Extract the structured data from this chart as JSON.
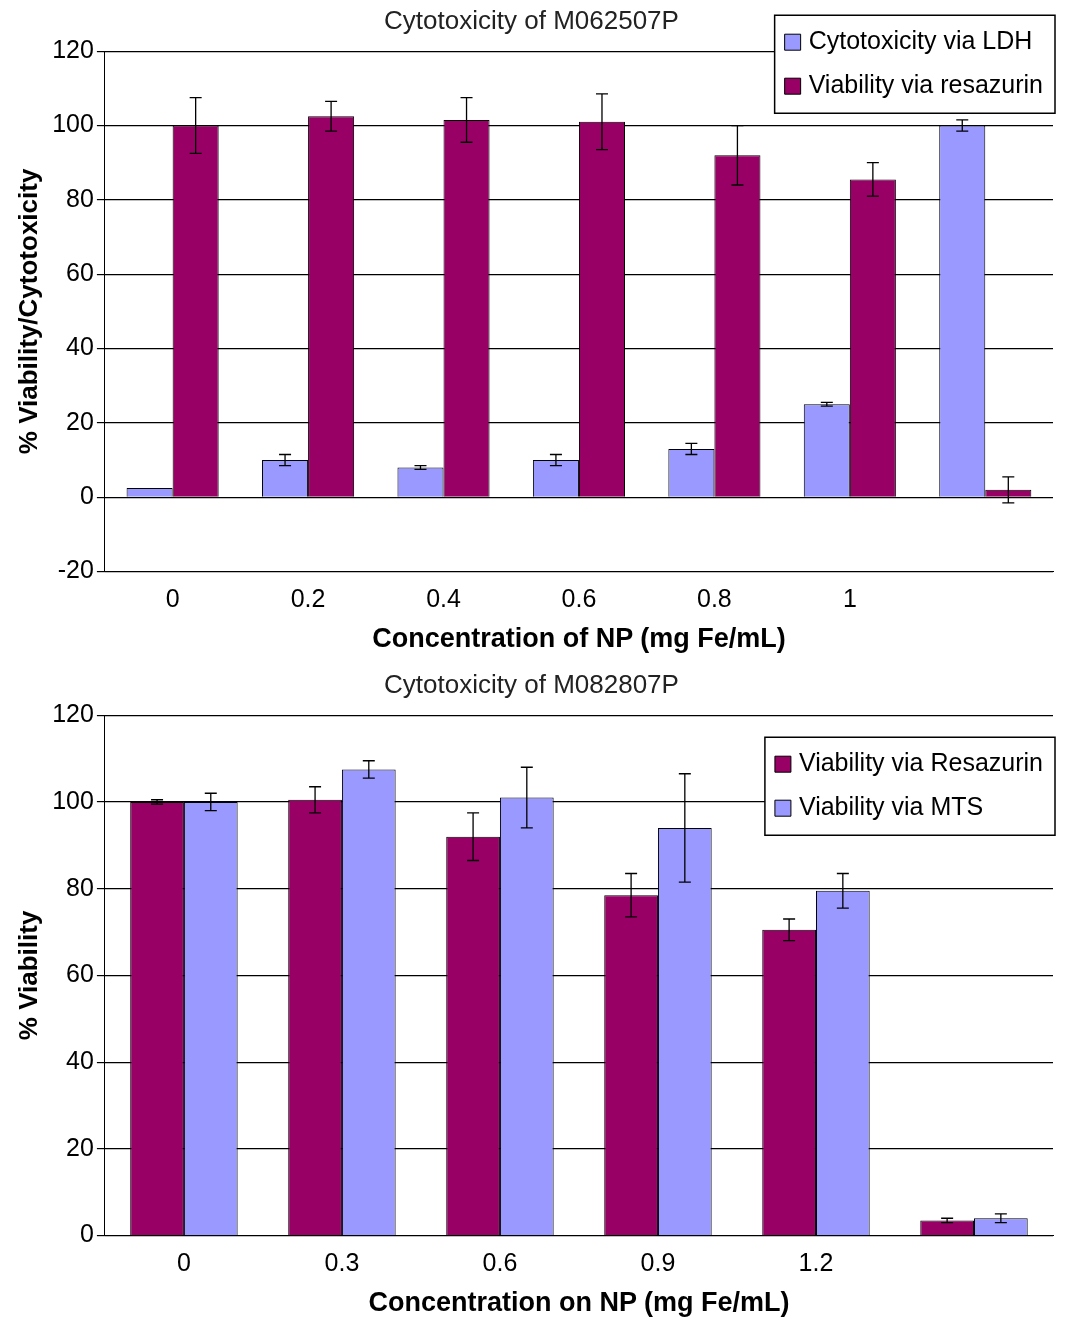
{
  "chart_data": [
    {
      "type": "bar",
      "title": "Cytotoxicity of M062507P",
      "xlabel": "Concentration of NP (mg Fe/mL)",
      "ylabel": "% Viability/Cytotoxicity",
      "categories": [
        "0",
        "0.2",
        "0.4",
        "0.6",
        "0.8",
        "1",
        null
      ],
      "ylim": [
        -20,
        120
      ],
      "yticks": [
        -20,
        0,
        20,
        40,
        60,
        80,
        100,
        120
      ],
      "grid": "y",
      "legend": "top right",
      "series": [
        {
          "name": "Cytotoxicity via LDH",
          "color": "#9999ff",
          "values": [
            2.5,
            10,
            8,
            10,
            13,
            25,
            100
          ],
          "errors": [
            null,
            1.5,
            0.5,
            1.5,
            1.5,
            0.5,
            1.5
          ]
        },
        {
          "name": "Viability via resazurin",
          "color": "#990066",
          "values": [
            100,
            102.5,
            101.5,
            101,
            92,
            85.5,
            2
          ],
          "errors": [
            7.5,
            4,
            6,
            7.5,
            8,
            4.5,
            3.5
          ]
        }
      ]
    },
    {
      "type": "bar",
      "title": "Cytotoxicity of M082807P",
      "xlabel": "Concentration on NP (mg Fe/mL)",
      "ylabel": "% Viability",
      "categories": [
        "0",
        "0.3",
        "0.6",
        "0.9",
        "1.2",
        null
      ],
      "ylim": [
        0,
        120
      ],
      "yticks": [
        0,
        20,
        40,
        60,
        80,
        100,
        120
      ],
      "grid": "y",
      "legend": "top right",
      "series": [
        {
          "name": "Viability via Resazurin",
          "color": "#990066",
          "values": [
            100,
            100.5,
            92,
            78.5,
            70.5,
            3.5
          ],
          "errors": [
            0.5,
            3,
            5.5,
            5,
            2.5,
            0.5
          ]
        },
        {
          "name": "Viability via MTS",
          "color": "#9999ff",
          "values": [
            100,
            107.5,
            101,
            94,
            79.5,
            4
          ],
          "errors": [
            2,
            2,
            7,
            12.5,
            4,
            1
          ]
        }
      ]
    }
  ]
}
